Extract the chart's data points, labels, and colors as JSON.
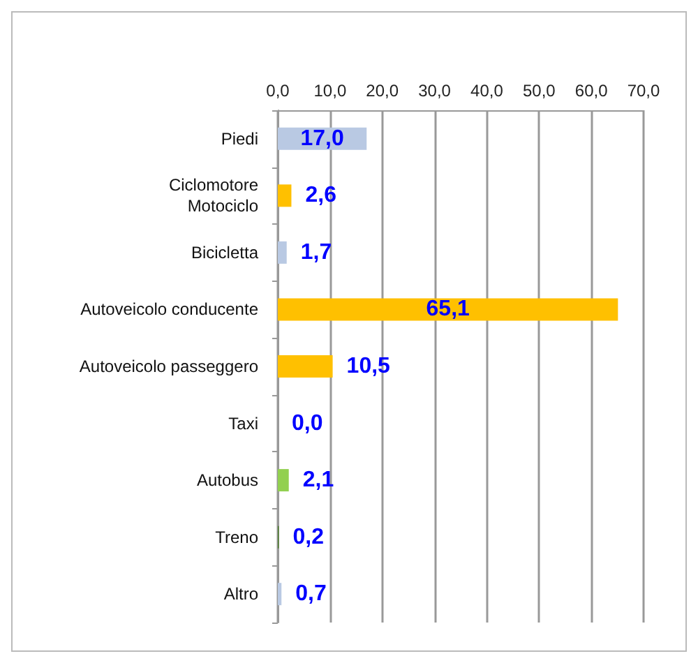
{
  "chart_data": {
    "type": "bar",
    "orientation": "horizontal",
    "categories": [
      "Piedi",
      "Ciclomotore\nMotociclo",
      "Bicicletta",
      "Autoveicolo conducente",
      "Autoveicolo passeggero",
      "Taxi",
      "Autobus",
      "Treno",
      "Altro"
    ],
    "values": [
      17.0,
      2.6,
      1.7,
      65.1,
      10.5,
      0.0,
      2.1,
      0.2,
      0.7
    ],
    "colors": [
      "#b9c9e3",
      "#ffc000",
      "#b9c9e3",
      "#ffc000",
      "#ffc000",
      "#4f7f2f",
      "#92d050",
      "#4f7f2f",
      "#b9c9e3"
    ],
    "value_labels": [
      "17,0",
      "2,6",
      "1,7",
      "65,1",
      "10,5",
      "0,0",
      "2,1",
      "0,2",
      "0,7"
    ],
    "xlim": [
      0,
      70
    ],
    "xticks": [
      {
        "value": 0,
        "label": "0,0"
      },
      {
        "value": 10,
        "label": "10,0"
      },
      {
        "value": 20,
        "label": "20,0"
      },
      {
        "value": 30,
        "label": "30,0"
      },
      {
        "value": 40,
        "label": "40,0"
      },
      {
        "value": 50,
        "label": "50,0"
      },
      {
        "value": 60,
        "label": "60,0"
      },
      {
        "value": 70,
        "label": "70,0"
      }
    ],
    "grid": "x"
  }
}
